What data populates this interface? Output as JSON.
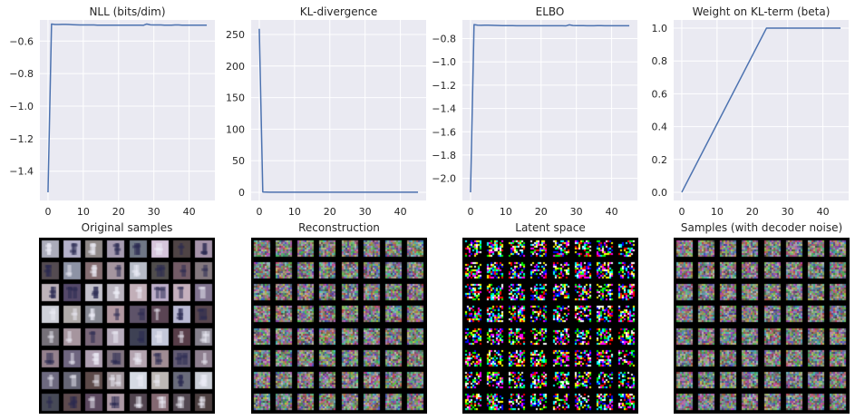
{
  "colors": {
    "plot_bg": "#eaeaf2",
    "grid": "#ffffff",
    "line": "#4c72b0",
    "tick_text": "#262626"
  },
  "chart_data": [
    {
      "type": "line",
      "title": "NLL (bits/dim)",
      "xlabel": "",
      "ylabel": "",
      "xlim": [
        -2.3,
        47.3
      ],
      "ylim": [
        -1.58,
        -0.47
      ],
      "xticks": [
        0,
        10,
        20,
        30,
        40
      ],
      "xtick_labels": [
        "0",
        "10",
        "20",
        "30",
        "40"
      ],
      "yticks": [
        -1.4,
        -1.2,
        -1.0,
        -0.8,
        -0.6
      ],
      "ytick_labels": [
        "−1.4",
        "−1.2",
        "−1.0",
        "−0.8",
        "−0.6"
      ],
      "grid": true,
      "x": [
        0,
        1,
        2,
        3,
        4,
        5,
        6,
        7,
        8,
        9,
        10,
        11,
        12,
        13,
        14,
        15,
        16,
        17,
        18,
        19,
        20,
        21,
        22,
        23,
        24,
        25,
        26,
        27,
        28,
        29,
        30,
        31,
        32,
        33,
        34,
        35,
        36,
        37,
        38,
        39,
        40,
        41,
        42,
        43,
        44,
        45
      ],
      "y": [
        -1.53,
        -0.495,
        -0.498,
        -0.498,
        -0.497,
        -0.497,
        -0.498,
        -0.499,
        -0.5,
        -0.501,
        -0.501,
        -0.501,
        -0.501,
        -0.501,
        -0.502,
        -0.502,
        -0.502,
        -0.502,
        -0.502,
        -0.502,
        -0.502,
        -0.502,
        -0.502,
        -0.502,
        -0.502,
        -0.502,
        -0.502,
        -0.503,
        -0.495,
        -0.5,
        -0.501,
        -0.501,
        -0.501,
        -0.502,
        -0.502,
        -0.502,
        -0.501,
        -0.501,
        -0.502,
        -0.502,
        -0.502,
        -0.502,
        -0.502,
        -0.502,
        -0.502,
        -0.502
      ]
    },
    {
      "type": "line",
      "title": "KL-divergence",
      "xlabel": "",
      "ylabel": "",
      "xlim": [
        -2.3,
        47.3
      ],
      "ylim": [
        -13,
        273
      ],
      "xticks": [
        0,
        10,
        20,
        30,
        40
      ],
      "xtick_labels": [
        "0",
        "10",
        "20",
        "30",
        "40"
      ],
      "yticks": [
        0,
        50,
        100,
        150,
        200,
        250
      ],
      "ytick_labels": [
        "0",
        "50",
        "100",
        "150",
        "200",
        "250"
      ],
      "grid": true,
      "x": [
        0,
        1,
        2,
        3,
        4,
        5,
        6,
        7,
        8,
        9,
        10,
        11,
        12,
        13,
        14,
        15,
        16,
        17,
        18,
        19,
        20,
        21,
        22,
        23,
        24,
        25,
        26,
        27,
        28,
        29,
        30,
        31,
        32,
        33,
        34,
        35,
        36,
        37,
        38,
        39,
        40,
        41,
        42,
        43,
        44,
        45
      ],
      "y": [
        259,
        0.5,
        0.3,
        0.2,
        0.2,
        0.2,
        0.2,
        0.2,
        0.2,
        0.2,
        0.2,
        0.2,
        0.2,
        0.2,
        0.2,
        0.2,
        0.2,
        0.2,
        0.2,
        0.2,
        0.2,
        0.2,
        0.2,
        0.2,
        0.2,
        0.2,
        0.2,
        0.2,
        0.2,
        0.2,
        0.2,
        0.2,
        0.2,
        0.2,
        0.2,
        0.2,
        0.2,
        0.2,
        0.2,
        0.2,
        0.2,
        0.2,
        0.2,
        0.2,
        0.2,
        0.2
      ]
    },
    {
      "type": "line",
      "title": "ELBO",
      "xlabel": "",
      "ylabel": "",
      "xlim": [
        -2.3,
        47.3
      ],
      "ylim": [
        -2.19,
        -0.64
      ],
      "xticks": [
        0,
        10,
        20,
        30,
        40
      ],
      "xtick_labels": [
        "0",
        "10",
        "20",
        "30",
        "40"
      ],
      "yticks": [
        -2.0,
        -1.8,
        -1.6,
        -1.4,
        -1.2,
        -1.0,
        -0.8
      ],
      "ytick_labels": [
        "−2.0",
        "−1.8",
        "−1.6",
        "−1.4",
        "−1.2",
        "−1.0",
        "−0.8"
      ],
      "grid": true,
      "x": [
        0,
        1,
        2,
        3,
        4,
        5,
        6,
        7,
        8,
        9,
        10,
        11,
        12,
        13,
        14,
        15,
        16,
        17,
        18,
        19,
        20,
        21,
        22,
        23,
        24,
        25,
        26,
        27,
        28,
        29,
        30,
        31,
        32,
        33,
        34,
        35,
        36,
        37,
        38,
        39,
        40,
        41,
        42,
        43,
        44,
        45
      ],
      "y": [
        -2.12,
        -0.68,
        -0.685,
        -0.686,
        -0.685,
        -0.685,
        -0.686,
        -0.687,
        -0.688,
        -0.689,
        -0.689,
        -0.689,
        -0.689,
        -0.69,
        -0.69,
        -0.69,
        -0.69,
        -0.69,
        -0.69,
        -0.69,
        -0.69,
        -0.69,
        -0.69,
        -0.69,
        -0.69,
        -0.69,
        -0.69,
        -0.691,
        -0.682,
        -0.688,
        -0.689,
        -0.689,
        -0.689,
        -0.69,
        -0.69,
        -0.69,
        -0.689,
        -0.689,
        -0.69,
        -0.69,
        -0.69,
        -0.69,
        -0.69,
        -0.69,
        -0.69,
        -0.69
      ]
    },
    {
      "type": "line",
      "title": "Weight on KL-term (beta)",
      "xlabel": "",
      "ylabel": "",
      "xlim": [
        -2.3,
        47.3
      ],
      "ylim": [
        -0.05,
        1.05
      ],
      "xticks": [
        0,
        10,
        20,
        30,
        40
      ],
      "xtick_labels": [
        "0",
        "10",
        "20",
        "30",
        "40"
      ],
      "yticks": [
        0.0,
        0.2,
        0.4,
        0.6,
        0.8,
        1.0
      ],
      "ytick_labels": [
        "0.0",
        "0.2",
        "0.4",
        "0.6",
        "0.8",
        "1.0"
      ],
      "grid": true,
      "x": [
        0,
        24,
        45
      ],
      "y": [
        0.0,
        1.0,
        1.0
      ]
    }
  ],
  "image_grids": [
    {
      "title": "Original samples",
      "rows": 8,
      "cols": 8,
      "style": "svhn"
    },
    {
      "title": "Reconstruction",
      "rows": 8,
      "cols": 8,
      "style": "noise-muted"
    },
    {
      "title": "Latent space",
      "rows": 8,
      "cols": 8,
      "style": "noise-saturated"
    },
    {
      "title": "Samples (with decoder noise)",
      "rows": 8,
      "cols": 8,
      "style": "noise-muted"
    }
  ]
}
